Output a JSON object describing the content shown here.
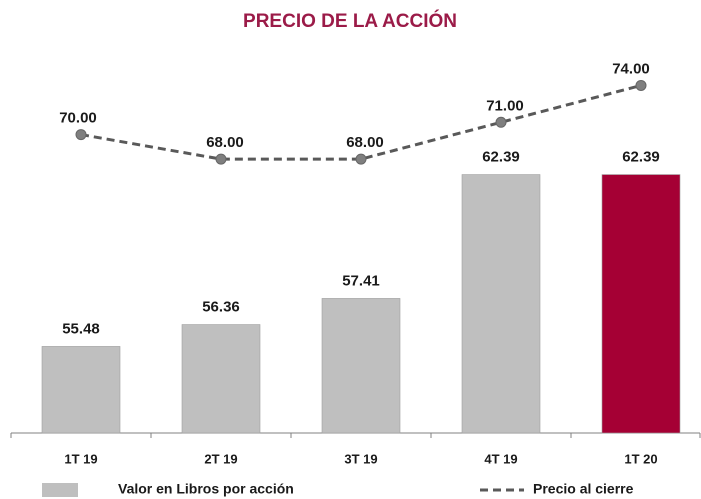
{
  "chart_data": {
    "type": "bar_line",
    "title": "PRECIO DE LA ACCIÓN",
    "categories": [
      "1T 19",
      "2T 19",
      "3T 19",
      "4T 19",
      "1T 20"
    ],
    "series": [
      {
        "name": "Valor en Libros por acción",
        "type": "bar",
        "color": "#bfbfbf",
        "colors": [
          "#bfbfbf",
          "#bfbfbf",
          "#bfbfbf",
          "#bfbfbf",
          "#a50034"
        ],
        "values": [
          55.48,
          56.36,
          57.41,
          62.39,
          62.39
        ]
      },
      {
        "name": "Precio al cierre",
        "type": "line",
        "axis": "y2",
        "color": "#595959",
        "dashed": true,
        "values": [
          70,
          68,
          68,
          71,
          74
        ],
        "value_labels": [
          "70.00",
          "68.00",
          "68.00",
          "71.00",
          "74.00"
        ]
      }
    ],
    "ylim": [
      52,
      67.8
    ],
    "y2lim": [
      45.7,
      77.7
    ],
    "title_color": "#9b1b48"
  }
}
